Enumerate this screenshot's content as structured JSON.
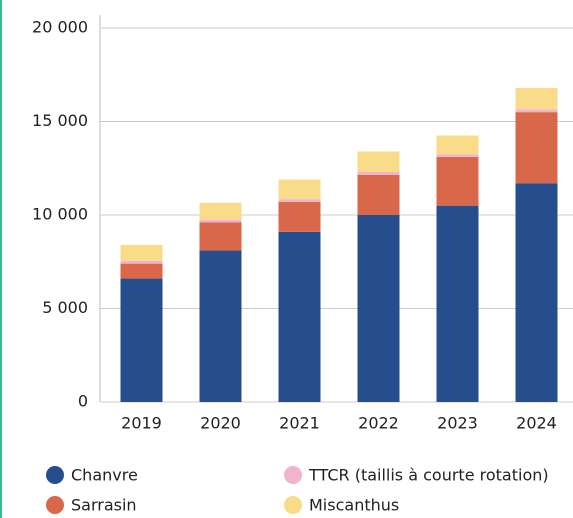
{
  "chart_data": {
    "type": "stacked_bar",
    "categories": [
      "2019",
      "2020",
      "2021",
      "2022",
      "2023",
      "2024"
    ],
    "series": [
      {
        "name": "Chanvre",
        "color": "#264e8c",
        "values": [
          6600,
          8100,
          9100,
          10000,
          10500,
          11700
        ]
      },
      {
        "name": "Sarrasin",
        "color": "#d9674a",
        "values": [
          800,
          1500,
          1600,
          2150,
          2600,
          3800
        ]
      },
      {
        "name": "TTCR (taillis à courte rotation)",
        "color": "#f0b4cc",
        "values": [
          150,
          150,
          150,
          150,
          150,
          150
        ]
      },
      {
        "name": "Miscanthus",
        "color": "#f9dc8a",
        "values": [
          850,
          900,
          1050,
          1100,
          1000,
          1150
        ]
      }
    ],
    "ylim": [
      0,
      20000
    ],
    "yticks": [
      {
        "value": 0,
        "label": "0"
      },
      {
        "value": 5000,
        "label": "5 000"
      },
      {
        "value": 10000,
        "label": "10 000"
      },
      {
        "value": 15000,
        "label": "15 000"
      },
      {
        "value": 20000,
        "label": "20 000"
      }
    ],
    "grid": true
  }
}
